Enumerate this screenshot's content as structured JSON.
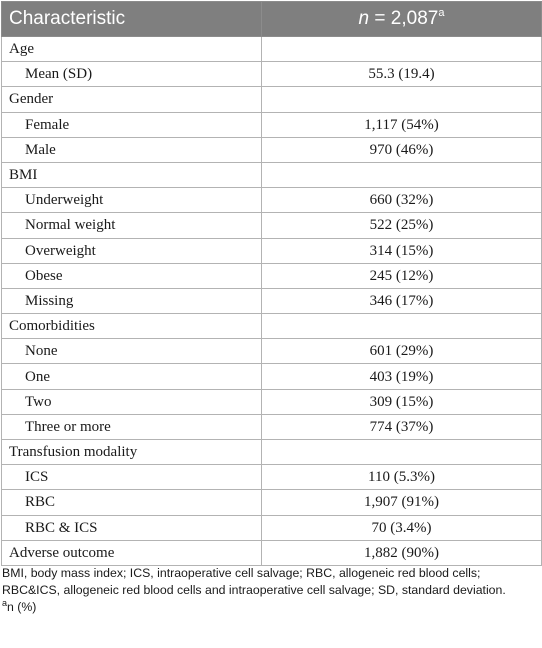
{
  "table": {
    "header": {
      "characteristic": "Characteristic",
      "n_label": "n",
      "n_value": " = 2,087",
      "n_sup": "a"
    },
    "rows": [
      {
        "label": "Age",
        "value": "",
        "level": 0
      },
      {
        "label": "Mean (SD)",
        "value": "55.3 (19.4)",
        "level": 1
      },
      {
        "label": "Gender",
        "value": "",
        "level": 0
      },
      {
        "label": "Female",
        "value": "1,117 (54%)",
        "level": 1
      },
      {
        "label": "Male",
        "value": "970 (46%)",
        "level": 1
      },
      {
        "label": "BMI",
        "value": "",
        "level": 0
      },
      {
        "label": "Underweight",
        "value": "660 (32%)",
        "level": 1
      },
      {
        "label": "Normal weight",
        "value": "522 (25%)",
        "level": 1
      },
      {
        "label": "Overweight",
        "value": "314 (15%)",
        "level": 1
      },
      {
        "label": "Obese",
        "value": "245 (12%)",
        "level": 1
      },
      {
        "label": "Missing",
        "value": "346 (17%)",
        "level": 1
      },
      {
        "label": "Comorbidities",
        "value": "",
        "level": 0
      },
      {
        "label": "None",
        "value": "601 (29%)",
        "level": 1
      },
      {
        "label": "One",
        "value": "403 (19%)",
        "level": 1
      },
      {
        "label": "Two",
        "value": "309 (15%)",
        "level": 1
      },
      {
        "label": "Three or more",
        "value": "774 (37%)",
        "level": 1
      },
      {
        "label": "Transfusion modality",
        "value": "",
        "level": 0
      },
      {
        "label": "ICS",
        "value": "110 (5.3%)",
        "level": 1
      },
      {
        "label": "RBC",
        "value": "1,907 (91%)",
        "level": 1
      },
      {
        "label": "RBC & ICS",
        "value": "70 (3.4%)",
        "level": 1
      },
      {
        "label": "Adverse outcome",
        "value": "1,882 (90%)",
        "level": 0
      }
    ]
  },
  "footnote": {
    "abbreviations": "BMI, body mass index; ICS, intraoperative cell salvage; RBC, allogeneic red blood cells; RBC&ICS, allogeneic red blood cells and intraoperative cell salvage; SD, standard deviation.",
    "note_marker": "a",
    "note_text": "n (%)"
  }
}
